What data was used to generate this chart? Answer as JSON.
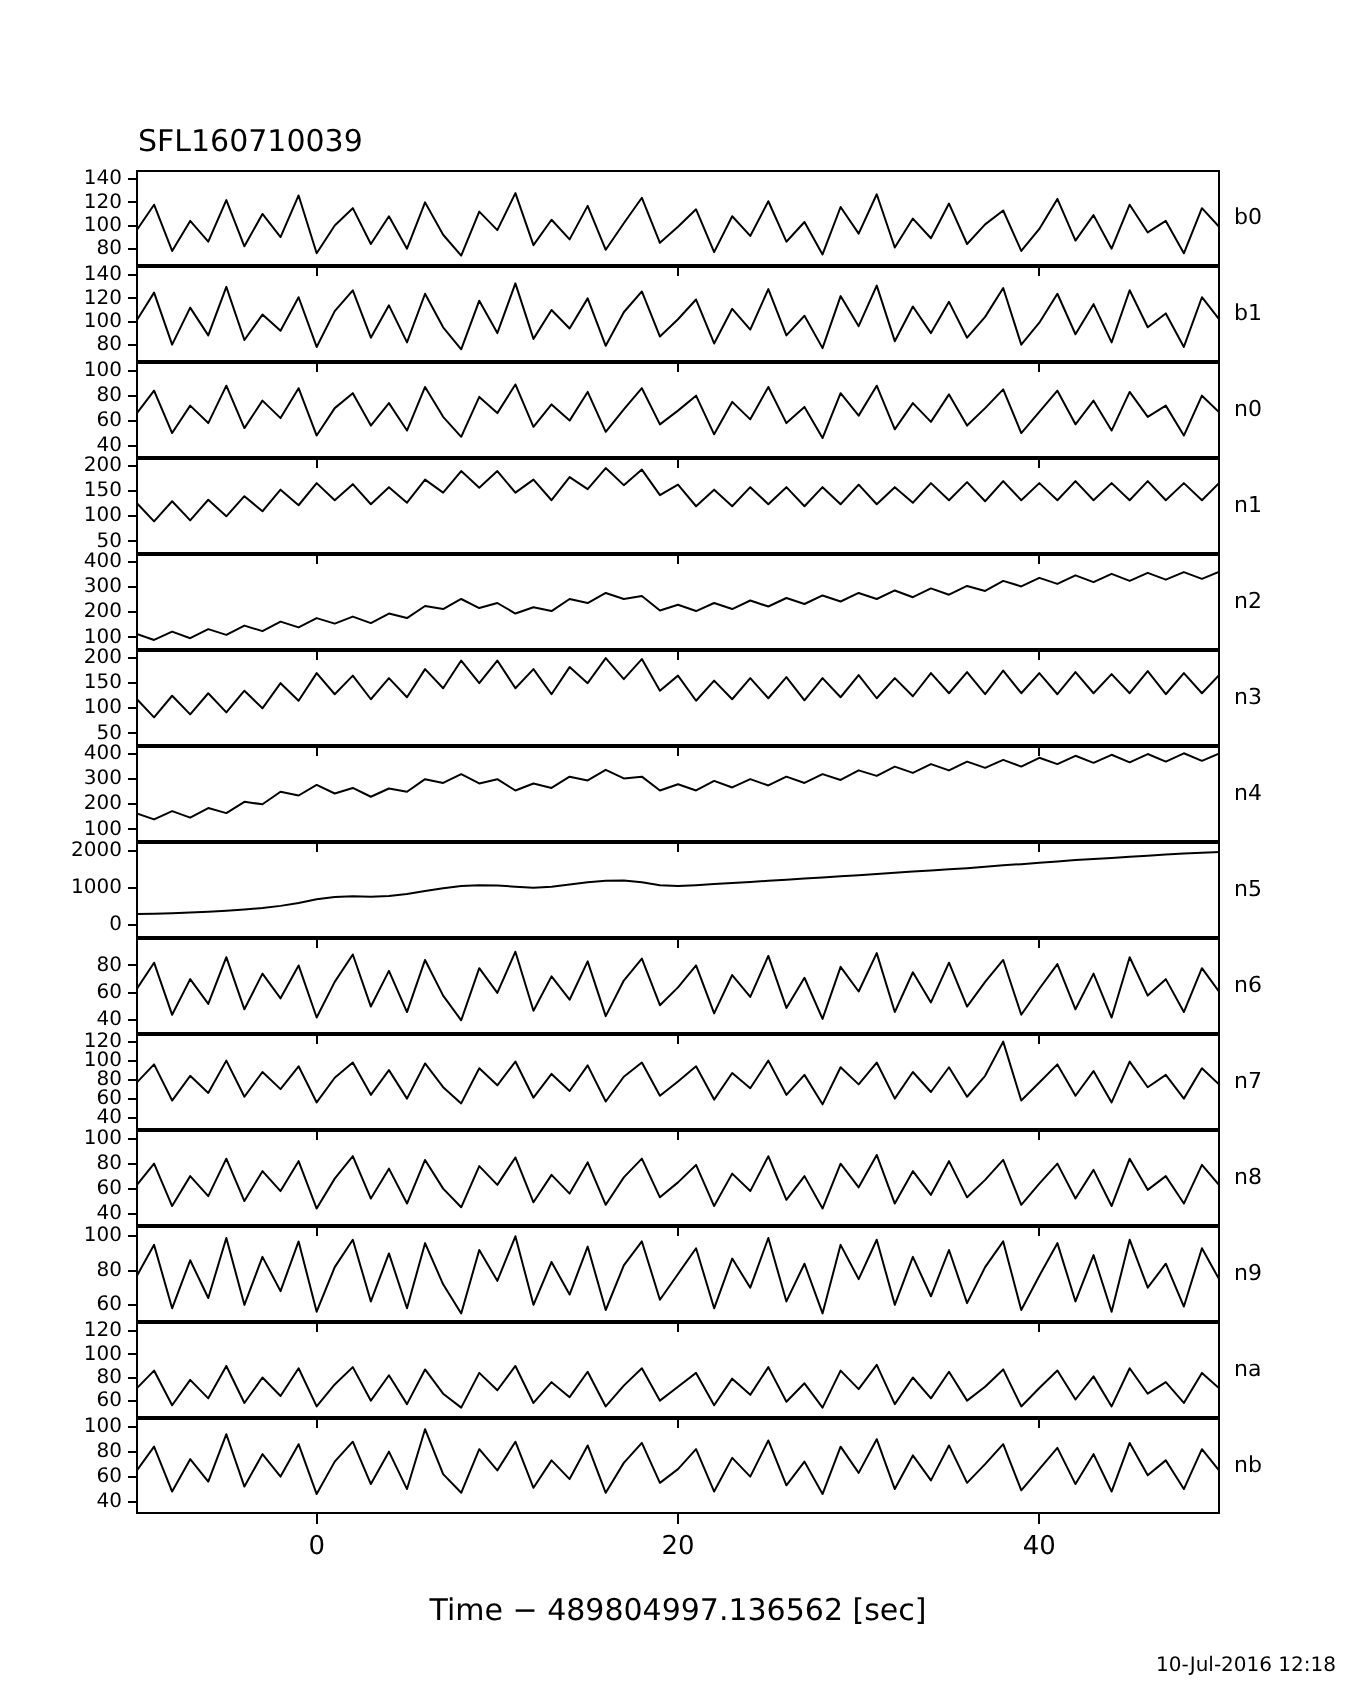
{
  "chart_data": [
    {
      "type": "line",
      "title": "SFL160710039",
      "tick_labels": "y",
      "xlim": [
        -10,
        50
      ],
      "xticks": [
        0,
        20,
        40
      ],
      "ylim": [
        65,
        148
      ],
      "yticks": [
        80,
        100,
        120,
        140
      ],
      "x": [
        -10,
        -9,
        -8,
        -7,
        -6,
        -5,
        -4,
        -3,
        -2,
        -1,
        0,
        1,
        2,
        3,
        4,
        5,
        6,
        7,
        8,
        9,
        10,
        11,
        12,
        13,
        14,
        15,
        16,
        17,
        18,
        19,
        20,
        21,
        22,
        23,
        24,
        25,
        26,
        27,
        28,
        29,
        30,
        31,
        32,
        33,
        34,
        35,
        36,
        37,
        38,
        39,
        40,
        41,
        42,
        43,
        44,
        45,
        46,
        47,
        48,
        49,
        50
      ],
      "series": [
        {
          "name": "b0",
          "color": "#000000",
          "values": [
            95,
            118,
            78,
            104,
            86,
            122,
            82,
            110,
            90,
            126,
            76,
            100,
            115,
            84,
            108,
            80,
            120,
            92,
            74,
            112,
            96,
            128,
            83,
            105,
            88,
            117,
            79,
            102,
            124,
            85,
            99,
            114,
            77,
            108,
            91,
            121,
            86,
            103,
            75,
            116,
            93,
            127,
            81,
            106,
            89,
            119,
            84,
            101,
            113,
            78,
            97,
            123,
            87,
            109,
            80,
            118,
            94,
            104,
            76,
            115,
            98
          ]
        }
      ]
    },
    {
      "type": "line",
      "tick_labels": "y",
      "xlim": [
        -10,
        50
      ],
      "xticks": [
        0,
        20,
        40
      ],
      "ylim": [
        65,
        148
      ],
      "yticks": [
        80,
        100,
        120,
        140
      ],
      "x": [
        -10,
        -9,
        -8,
        -7,
        -6,
        -5,
        -4,
        -3,
        -2,
        -1,
        0,
        1,
        2,
        3,
        4,
        5,
        6,
        7,
        8,
        9,
        10,
        11,
        12,
        13,
        14,
        15,
        16,
        17,
        18,
        19,
        20,
        21,
        22,
        23,
        24,
        25,
        26,
        27,
        28,
        29,
        30,
        31,
        32,
        33,
        34,
        35,
        36,
        37,
        38,
        39,
        40,
        41,
        42,
        43,
        44,
        45,
        46,
        47,
        48,
        49,
        50
      ],
      "series": [
        {
          "name": "b1",
          "color": "#000000",
          "values": [
            100,
            125,
            80,
            112,
            88,
            130,
            84,
            106,
            92,
            121,
            78,
            109,
            127,
            86,
            114,
            82,
            124,
            95,
            76,
            118,
            90,
            133,
            85,
            110,
            94,
            120,
            79,
            108,
            126,
            87,
            102,
            119,
            81,
            111,
            93,
            128,
            88,
            105,
            77,
            122,
            96,
            131,
            83,
            113,
            90,
            117,
            86,
            104,
            129,
            80,
            99,
            124,
            89,
            115,
            82,
            127,
            95,
            107,
            78,
            121,
            101
          ]
        }
      ]
    },
    {
      "type": "line",
      "tick_labels": "y",
      "xlim": [
        -10,
        50
      ],
      "xticks": [
        0,
        20,
        40
      ],
      "ylim": [
        30,
        107
      ],
      "yticks": [
        40,
        60,
        80,
        100
      ],
      "x": [
        -10,
        -9,
        -8,
        -7,
        -6,
        -5,
        -4,
        -3,
        -2,
        -1,
        0,
        1,
        2,
        3,
        4,
        5,
        6,
        7,
        8,
        9,
        10,
        11,
        12,
        13,
        14,
        15,
        16,
        17,
        18,
        19,
        20,
        21,
        22,
        23,
        24,
        25,
        26,
        27,
        28,
        29,
        30,
        31,
        32,
        33,
        34,
        35,
        36,
        37,
        38,
        39,
        40,
        41,
        42,
        43,
        44,
        45,
        46,
        47,
        48,
        49,
        50
      ],
      "series": [
        {
          "name": "n0",
          "color": "#000000",
          "values": [
            65,
            84,
            50,
            72,
            58,
            88,
            54,
            76,
            62,
            86,
            48,
            70,
            82,
            56,
            74,
            52,
            87,
            63,
            47,
            79,
            66,
            89,
            55,
            73,
            60,
            83,
            51,
            69,
            86,
            57,
            68,
            80,
            49,
            75,
            61,
            87,
            58,
            71,
            46,
            82,
            64,
            88,
            53,
            74,
            59,
            81,
            56,
            70,
            85,
            50,
            67,
            84,
            57,
            76,
            52,
            83,
            63,
            72,
            48,
            80,
            66
          ]
        }
      ]
    },
    {
      "type": "line",
      "tick_labels": "y",
      "xlim": [
        -10,
        50
      ],
      "xticks": [
        0,
        20,
        40
      ],
      "ylim": [
        25,
        216
      ],
      "yticks": [
        50,
        100,
        150,
        200
      ],
      "x": [
        -10,
        -9,
        -8,
        -7,
        -6,
        -5,
        -4,
        -3,
        -2,
        -1,
        0,
        1,
        2,
        3,
        4,
        5,
        6,
        7,
        8,
        9,
        10,
        11,
        12,
        13,
        14,
        15,
        16,
        17,
        18,
        19,
        20,
        21,
        22,
        23,
        24,
        25,
        26,
        27,
        28,
        29,
        30,
        31,
        32,
        33,
        34,
        35,
        36,
        37,
        38,
        39,
        40,
        41,
        42,
        43,
        44,
        45,
        46,
        47,
        48,
        49,
        50
      ],
      "series": [
        {
          "name": "n1",
          "color": "#000000",
          "values": [
            128,
            90,
            130,
            92,
            133,
            100,
            140,
            110,
            153,
            122,
            166,
            132,
            164,
            124,
            158,
            127,
            173,
            147,
            190,
            157,
            190,
            147,
            173,
            132,
            178,
            154,
            196,
            162,
            193,
            142,
            163,
            120,
            153,
            120,
            158,
            124,
            158,
            120,
            158,
            124,
            163,
            124,
            158,
            127,
            166,
            132,
            168,
            130,
            170,
            132,
            166,
            132,
            170,
            132,
            166,
            132,
            170,
            132,
            166,
            132,
            168
          ]
        }
      ]
    },
    {
      "type": "line",
      "tick_labels": "y",
      "xlim": [
        -10,
        50
      ],
      "xticks": [
        0,
        20,
        40
      ],
      "ylim": [
        50,
        432
      ],
      "yticks": [
        100,
        200,
        300,
        400
      ],
      "x": [
        -10,
        -9,
        -8,
        -7,
        -6,
        -5,
        -4,
        -3,
        -2,
        -1,
        0,
        1,
        2,
        3,
        4,
        5,
        6,
        7,
        8,
        9,
        10,
        11,
        12,
        13,
        14,
        15,
        16,
        17,
        18,
        19,
        20,
        21,
        22,
        23,
        24,
        25,
        26,
        27,
        28,
        29,
        30,
        31,
        32,
        33,
        34,
        35,
        36,
        37,
        38,
        39,
        40,
        41,
        42,
        43,
        44,
        45,
        46,
        47,
        48,
        49,
        50
      ],
      "series": [
        {
          "name": "n2",
          "color": "#000000",
          "values": [
            115,
            90,
            123,
            97,
            133,
            110,
            147,
            125,
            163,
            140,
            177,
            155,
            183,
            157,
            195,
            177,
            225,
            213,
            253,
            217,
            237,
            195,
            220,
            205,
            253,
            237,
            277,
            253,
            265,
            207,
            230,
            205,
            237,
            213,
            247,
            223,
            257,
            233,
            267,
            243,
            277,
            253,
            287,
            260,
            295,
            270,
            305,
            285,
            325,
            303,
            337,
            313,
            347,
            320,
            353,
            325,
            357,
            330,
            360,
            333,
            363
          ]
        }
      ]
    },
    {
      "type": "line",
      "tick_labels": "y",
      "xlim": [
        -10,
        50
      ],
      "xticks": [
        0,
        20,
        40
      ],
      "ylim": [
        25,
        216
      ],
      "yticks": [
        50,
        100,
        150,
        200
      ],
      "x": [
        -10,
        -9,
        -8,
        -7,
        -6,
        -5,
        -4,
        -3,
        -2,
        -1,
        0,
        1,
        2,
        3,
        4,
        5,
        6,
        7,
        8,
        9,
        10,
        11,
        12,
        13,
        14,
        15,
        16,
        17,
        18,
        19,
        20,
        21,
        22,
        23,
        24,
        25,
        26,
        27,
        28,
        29,
        30,
        31,
        32,
        33,
        34,
        35,
        36,
        37,
        38,
        39,
        40,
        41,
        42,
        43,
        44,
        45,
        46,
        47,
        48,
        49,
        50
      ],
      "series": [
        {
          "name": "n3",
          "color": "#000000",
          "values": [
            120,
            82,
            125,
            88,
            130,
            92,
            135,
            100,
            150,
            115,
            170,
            128,
            165,
            118,
            160,
            122,
            178,
            140,
            195,
            150,
            195,
            140,
            178,
            128,
            182,
            150,
            200,
            158,
            198,
            135,
            165,
            115,
            155,
            118,
            160,
            120,
            162,
            116,
            160,
            122,
            166,
            120,
            160,
            124,
            170,
            130,
            172,
            128,
            175,
            130,
            170,
            128,
            172,
            130,
            168,
            130,
            174,
            128,
            170,
            130,
            168
          ]
        }
      ]
    },
    {
      "type": "line",
      "tick_labels": "y",
      "xlim": [
        -10,
        50
      ],
      "xticks": [
        0,
        20,
        40
      ],
      "ylim": [
        50,
        432
      ],
      "yticks": [
        100,
        200,
        300,
        400
      ],
      "x": [
        -10,
        -9,
        -8,
        -7,
        -6,
        -5,
        -4,
        -3,
        -2,
        -1,
        0,
        1,
        2,
        3,
        4,
        5,
        6,
        7,
        8,
        9,
        10,
        11,
        12,
        13,
        14,
        15,
        16,
        17,
        18,
        19,
        20,
        21,
        22,
        23,
        24,
        25,
        26,
        27,
        28,
        29,
        30,
        31,
        32,
        33,
        34,
        35,
        36,
        37,
        38,
        39,
        40,
        41,
        42,
        43,
        44,
        45,
        46,
        47,
        48,
        49,
        50
      ],
      "series": [
        {
          "name": "n4",
          "color": "#000000",
          "values": [
            165,
            140,
            173,
            147,
            185,
            165,
            210,
            200,
            250,
            235,
            277,
            243,
            265,
            230,
            263,
            250,
            300,
            285,
            320,
            283,
            300,
            255,
            283,
            265,
            310,
            295,
            337,
            303,
            310,
            255,
            280,
            255,
            293,
            267,
            300,
            275,
            310,
            285,
            320,
            297,
            335,
            313,
            350,
            325,
            360,
            335,
            370,
            345,
            377,
            350,
            385,
            360,
            393,
            365,
            397,
            367,
            400,
            370,
            403,
            373,
            403
          ]
        }
      ]
    },
    {
      "type": "line",
      "tick_labels": "y",
      "xlim": [
        -10,
        50
      ],
      "xticks": [
        0,
        20,
        40
      ],
      "ylim": [
        -350,
        2250
      ],
      "yticks": [
        0,
        1000,
        2000
      ],
      "x": [
        -10,
        -9,
        -8,
        -7,
        -6,
        -5,
        -4,
        -3,
        -2,
        -1,
        0,
        1,
        2,
        3,
        4,
        5,
        6,
        7,
        8,
        9,
        10,
        11,
        12,
        13,
        14,
        15,
        16,
        17,
        18,
        19,
        20,
        21,
        22,
        23,
        24,
        25,
        26,
        27,
        28,
        29,
        30,
        31,
        32,
        33,
        34,
        35,
        36,
        37,
        38,
        39,
        40,
        41,
        42,
        43,
        44,
        45,
        46,
        47,
        48,
        49,
        50
      ],
      "series": [
        {
          "name": "n5",
          "color": "#000000",
          "values": [
            300,
            310,
            320,
            340,
            360,
            390,
            420,
            460,
            520,
            600,
            700,
            760,
            780,
            770,
            790,
            840,
            920,
            1000,
            1060,
            1080,
            1070,
            1040,
            1010,
            1040,
            1100,
            1160,
            1200,
            1210,
            1160,
            1080,
            1060,
            1080,
            1110,
            1140,
            1170,
            1200,
            1230,
            1260,
            1290,
            1320,
            1350,
            1380,
            1420,
            1450,
            1480,
            1510,
            1540,
            1580,
            1620,
            1650,
            1690,
            1720,
            1760,
            1790,
            1820,
            1850,
            1880,
            1910,
            1940,
            1960,
            1980
          ]
        }
      ]
    },
    {
      "type": "line",
      "tick_labels": "y",
      "xlim": [
        -10,
        50
      ],
      "xticks": [
        0,
        20,
        40
      ],
      "ylim": [
        30,
        100
      ],
      "yticks": [
        40,
        60,
        80
      ],
      "x": [
        -10,
        -9,
        -8,
        -7,
        -6,
        -5,
        -4,
        -3,
        -2,
        -1,
        0,
        1,
        2,
        3,
        4,
        5,
        6,
        7,
        8,
        9,
        10,
        11,
        12,
        13,
        14,
        15,
        16,
        17,
        18,
        19,
        20,
        21,
        22,
        23,
        24,
        25,
        26,
        27,
        28,
        29,
        30,
        31,
        32,
        33,
        34,
        35,
        36,
        37,
        38,
        39,
        40,
        41,
        42,
        43,
        44,
        45,
        46,
        47,
        48,
        49,
        50
      ],
      "series": [
        {
          "name": "n6",
          "color": "#000000",
          "values": [
            62,
            82,
            44,
            70,
            52,
            86,
            48,
            74,
            56,
            80,
            42,
            68,
            88,
            50,
            76,
            46,
            84,
            58,
            40,
            78,
            60,
            90,
            47,
            72,
            55,
            83,
            43,
            69,
            85,
            51,
            64,
            80,
            45,
            73,
            57,
            87,
            49,
            71,
            41,
            79,
            61,
            89,
            46,
            75,
            53,
            82,
            50,
            68,
            84,
            44,
            63,
            81,
            48,
            74,
            42,
            86,
            58,
            70,
            46,
            78,
            60
          ]
        }
      ]
    },
    {
      "type": "line",
      "tick_labels": "y",
      "xlim": [
        -10,
        50
      ],
      "xticks": [
        0,
        20,
        40
      ],
      "ylim": [
        27,
        128
      ],
      "yticks": [
        40,
        60,
        80,
        100,
        120
      ],
      "x": [
        -10,
        -9,
        -8,
        -7,
        -6,
        -5,
        -4,
        -3,
        -2,
        -1,
        0,
        1,
        2,
        3,
        4,
        5,
        6,
        7,
        8,
        9,
        10,
        11,
        12,
        13,
        14,
        15,
        16,
        17,
        18,
        19,
        20,
        21,
        22,
        23,
        24,
        25,
        26,
        27,
        28,
        29,
        30,
        31,
        32,
        33,
        34,
        35,
        36,
        37,
        38,
        39,
        40,
        41,
        42,
        43,
        44,
        45,
        46,
        47,
        48,
        49,
        50
      ],
      "series": [
        {
          "name": "n7",
          "color": "#000000",
          "values": [
            76,
            96,
            58,
            84,
            66,
            100,
            62,
            88,
            70,
            94,
            56,
            82,
            98,
            64,
            90,
            60,
            97,
            72,
            55,
            92,
            74,
            99,
            61,
            86,
            68,
            95,
            57,
            83,
            98,
            63,
            78,
            94,
            59,
            87,
            71,
            100,
            64,
            85,
            54,
            93,
            75,
            98,
            60,
            88,
            67,
            93,
            62,
            84,
            120,
            58,
            77,
            96,
            63,
            89,
            56,
            99,
            72,
            85,
            60,
            92,
            74
          ]
        }
      ]
    },
    {
      "type": "line",
      "tick_labels": "y",
      "xlim": [
        -10,
        50
      ],
      "xticks": [
        0,
        20,
        40
      ],
      "ylim": [
        30,
        107
      ],
      "yticks": [
        40,
        60,
        80,
        100
      ],
      "x": [
        -10,
        -9,
        -8,
        -7,
        -6,
        -5,
        -4,
        -3,
        -2,
        -1,
        0,
        1,
        2,
        3,
        4,
        5,
        6,
        7,
        8,
        9,
        10,
        11,
        12,
        13,
        14,
        15,
        16,
        17,
        18,
        19,
        20,
        21,
        22,
        23,
        24,
        25,
        26,
        27,
        28,
        29,
        30,
        31,
        32,
        33,
        34,
        35,
        36,
        37,
        38,
        39,
        40,
        41,
        42,
        43,
        44,
        45,
        46,
        47,
        48,
        49,
        50
      ],
      "series": [
        {
          "name": "n8",
          "color": "#000000",
          "values": [
            62,
            80,
            46,
            70,
            54,
            84,
            50,
            74,
            58,
            82,
            44,
            68,
            86,
            52,
            76,
            48,
            83,
            60,
            45,
            78,
            63,
            85,
            49,
            71,
            56,
            81,
            47,
            69,
            84,
            53,
            65,
            79,
            46,
            72,
            58,
            86,
            51,
            70,
            44,
            80,
            61,
            87,
            48,
            74,
            55,
            82,
            53,
            67,
            83,
            47,
            64,
            80,
            52,
            75,
            46,
            84,
            59,
            70,
            48,
            79,
            62
          ]
        }
      ]
    },
    {
      "type": "line",
      "tick_labels": "y",
      "xlim": [
        -10,
        50
      ],
      "xticks": [
        0,
        20,
        40
      ],
      "ylim": [
        50,
        106
      ],
      "yticks": [
        60,
        80,
        100
      ],
      "x": [
        -10,
        -9,
        -8,
        -7,
        -6,
        -5,
        -4,
        -3,
        -2,
        -1,
        0,
        1,
        2,
        3,
        4,
        5,
        6,
        7,
        8,
        9,
        10,
        11,
        12,
        13,
        14,
        15,
        16,
        17,
        18,
        19,
        20,
        21,
        22,
        23,
        24,
        25,
        26,
        27,
        28,
        29,
        30,
        31,
        32,
        33,
        34,
        35,
        36,
        37,
        38,
        39,
        40,
        41,
        42,
        43,
        44,
        45,
        46,
        47,
        48,
        49,
        50
      ],
      "series": [
        {
          "name": "n9",
          "color": "#000000",
          "values": [
            76,
            95,
            58,
            86,
            64,
            99,
            60,
            88,
            68,
            97,
            56,
            82,
            98,
            62,
            90,
            58,
            96,
            72,
            55,
            92,
            74,
            100,
            60,
            85,
            66,
            94,
            57,
            83,
            97,
            63,
            78,
            93,
            58,
            87,
            70,
            99,
            62,
            84,
            55,
            95,
            75,
            98,
            60,
            88,
            65,
            92,
            61,
            82,
            97,
            57,
            77,
            96,
            62,
            89,
            56,
            98,
            70,
            84,
            59,
            93,
            74
          ]
        }
      ]
    },
    {
      "type": "line",
      "tick_labels": "y",
      "xlim": [
        -10,
        50
      ],
      "xticks": [
        0,
        20,
        40
      ],
      "ylim": [
        45,
        128
      ],
      "yticks": [
        60,
        80,
        100,
        120
      ],
      "x": [
        -10,
        -9,
        -8,
        -7,
        -6,
        -5,
        -4,
        -3,
        -2,
        -1,
        0,
        1,
        2,
        3,
        4,
        5,
        6,
        7,
        8,
        9,
        10,
        11,
        12,
        13,
        14,
        15,
        16,
        17,
        18,
        19,
        20,
        21,
        22,
        23,
        24,
        25,
        26,
        27,
        28,
        29,
        30,
        31,
        32,
        33,
        34,
        35,
        36,
        37,
        38,
        39,
        40,
        41,
        42,
        43,
        44,
        45,
        46,
        47,
        48,
        49,
        50
      ],
      "series": [
        {
          "name": "na",
          "color": "#000000",
          "values": [
            70,
            86,
            56,
            78,
            62,
            90,
            58,
            80,
            64,
            88,
            55,
            74,
            89,
            60,
            82,
            57,
            87,
            66,
            54,
            84,
            69,
            90,
            58,
            76,
            63,
            85,
            55,
            73,
            88,
            60,
            72,
            84,
            56,
            79,
            65,
            89,
            59,
            75,
            54,
            86,
            70,
            91,
            57,
            80,
            62,
            85,
            60,
            72,
            87,
            55,
            71,
            86,
            61,
            81,
            55,
            88,
            66,
            76,
            58,
            84,
            70
          ]
        }
      ]
    },
    {
      "type": "line",
      "xlabel": "Time − 489804997.136562 [sec]",
      "annotations": [
        "10-Jul-2016 12:18"
      ],
      "xlim": [
        -10,
        50
      ],
      "xticks": [
        0,
        20,
        40
      ],
      "ylim": [
        30,
        107
      ],
      "yticks": [
        40,
        60,
        80,
        100
      ],
      "x": [
        -10,
        -9,
        -8,
        -7,
        -6,
        -5,
        -4,
        -3,
        -2,
        -1,
        0,
        1,
        2,
        3,
        4,
        5,
        6,
        7,
        8,
        9,
        10,
        11,
        12,
        13,
        14,
        15,
        16,
        17,
        18,
        19,
        20,
        21,
        22,
        23,
        24,
        25,
        26,
        27,
        28,
        29,
        30,
        31,
        32,
        33,
        34,
        35,
        36,
        37,
        38,
        39,
        40,
        41,
        42,
        43,
        44,
        45,
        46,
        47,
        48,
        49,
        50
      ],
      "series": [
        {
          "name": "nb",
          "color": "#000000",
          "values": [
            64,
            84,
            48,
            74,
            56,
            94,
            52,
            78,
            60,
            86,
            46,
            72,
            88,
            54,
            80,
            50,
            98,
            62,
            47,
            82,
            65,
            88,
            51,
            73,
            58,
            85,
            47,
            71,
            87,
            55,
            66,
            82,
            48,
            75,
            60,
            89,
            53,
            72,
            46,
            84,
            63,
            90,
            50,
            77,
            57,
            85,
            55,
            70,
            86,
            49,
            66,
            83,
            54,
            78,
            48,
            87,
            61,
            73,
            50,
            82,
            64
          ]
        }
      ]
    }
  ]
}
